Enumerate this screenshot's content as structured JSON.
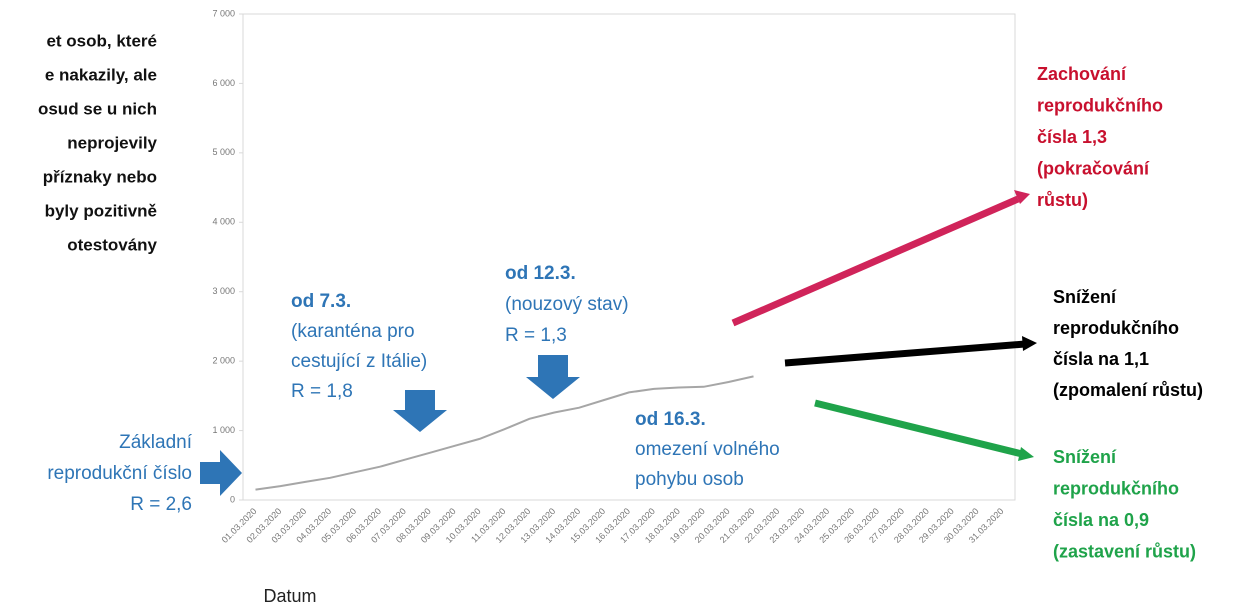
{
  "chart_data": {
    "type": "line",
    "x_label": "Datum",
    "categories": [
      "01.03.2020",
      "02.03.2020",
      "03.03.2020",
      "04.03.2020",
      "05.03.2020",
      "06.03.2020",
      "07.03.2020",
      "08.03.2020",
      "09.03.2020",
      "10.03.2020",
      "11.03.2020",
      "12.03.2020",
      "13.03.2020",
      "14.03.2020",
      "15.03.2020",
      "16.03.2020",
      "17.03.2020",
      "18.03.2020",
      "19.03.2020",
      "20.03.2020",
      "21.03.2020",
      "22.03.2020",
      "23.03.2020",
      "24.03.2020",
      "25.03.2020",
      "26.03.2020",
      "27.03.2020",
      "28.03.2020",
      "29.03.2020",
      "30.03.2020",
      "31.03.2020"
    ],
    "series": [
      {
        "color": "#a6a6a6",
        "values": [
          150,
          200,
          260,
          320,
          400,
          480,
          580,
          680,
          780,
          880,
          1020,
          1170,
          1260,
          1330,
          1440,
          1550,
          1600,
          1620,
          1630,
          1700,
          1780,
          null,
          null,
          null,
          null,
          null,
          null,
          null,
          null,
          null,
          null
        ]
      }
    ],
    "ylim": [
      0,
      7000
    ],
    "yticks": [
      0,
      {
        "value": 1000,
        "label": "1 000"
      },
      {
        "value": 2000,
        "label": "2 000"
      },
      {
        "value": 3000,
        "label": "3 000"
      },
      {
        "value": 4000,
        "label": "4 000"
      },
      {
        "value": 5000,
        "label": "5 000"
      },
      {
        "value": 6000,
        "label": "6 000"
      },
      {
        "value": 7000,
        "label": "7 000"
      }
    ],
    "annotations": [
      {
        "lines": [
          "et osob, které",
          "e nakazily, ale",
          "osud se u nich",
          "neprojevily",
          "příznaky nebo",
          "byly pozitivně",
          "otestovány"
        ],
        "color": "#111111"
      },
      {
        "lines": [
          "Základní",
          "reprodukční číslo",
          "R = 2,6"
        ],
        "color": "#2e75b6"
      },
      {
        "lines": [
          "od 7.3.",
          "(karanténa pro",
          "cestující z Itálie)",
          "R = 1,8"
        ],
        "color": "#2e75b6"
      },
      {
        "lines": [
          "od 12.3.",
          "(nouzový stav)",
          "R = 1,3"
        ],
        "color": "#2e75b6"
      },
      {
        "lines": [
          "od 16.3.",
          "omezení volného",
          "pohybu osob"
        ],
        "color": "#2e75b6"
      },
      {
        "lines": [
          "Zachování",
          "reprodukčního",
          "čísla 1,3",
          "(pokračování",
          "růstu)"
        ],
        "color": "#c8102e"
      },
      {
        "lines": [
          "Snížení",
          "reprodukčního",
          "čísla na 1,1",
          "(zpomalení růstu)"
        ],
        "color": "#000000"
      },
      {
        "lines": [
          "Snížení",
          "reprodukčního",
          "čísla na 0,9",
          "(zastavení růstu)"
        ],
        "color": "#1fa34a"
      }
    ]
  }
}
